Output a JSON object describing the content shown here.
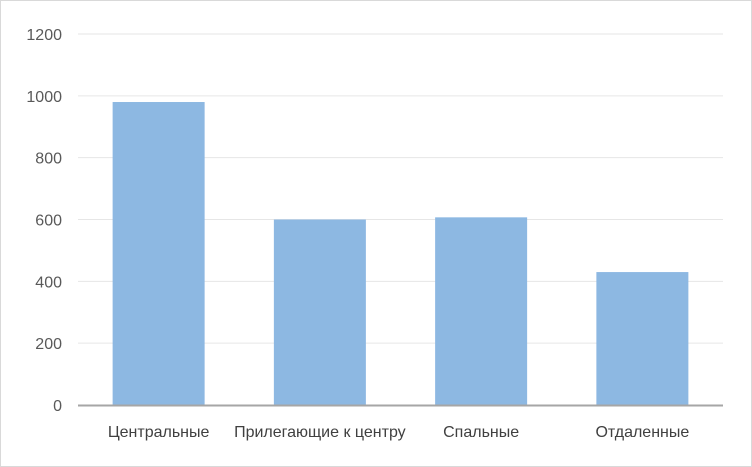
{
  "chart_data": {
    "type": "bar",
    "title": "",
    "xlabel": "",
    "ylabel": "",
    "categories": [
      "Центральные",
      "Прилегающие  к центру",
      "Спальные",
      "Отдаленные"
    ],
    "values": [
      980,
      600,
      607,
      430
    ],
    "ylim": [
      0,
      1200
    ],
    "yticks": [
      "0",
      "200",
      "400",
      "600",
      "800",
      "1000",
      "1200"
    ],
    "grid": true,
    "legend": "none",
    "colors": {
      "bar": "#8db8e2",
      "grid": "#e6e6e6",
      "axis": "#a6a6a6",
      "text": "#595959"
    }
  }
}
